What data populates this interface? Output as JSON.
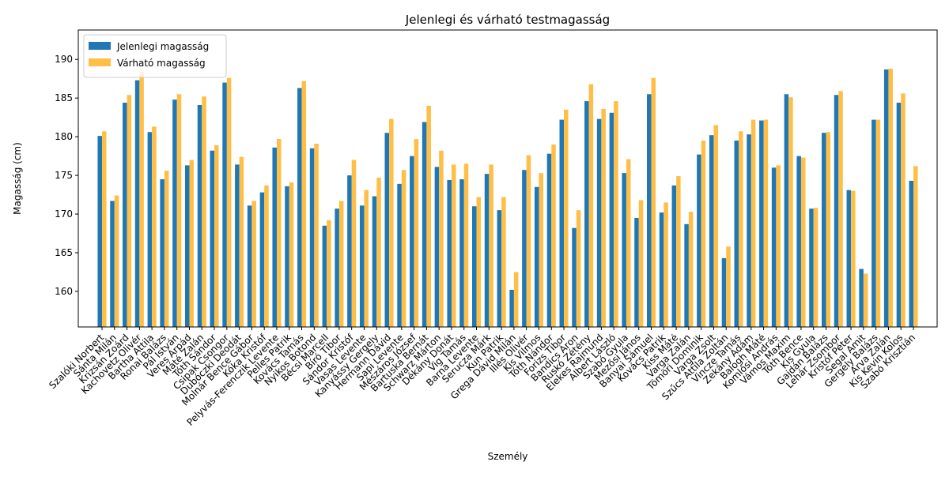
{
  "chart_data": {
    "type": "bar",
    "title": "Jelenlegi és várható testmagasság",
    "xlabel": "Személy",
    "ylabel": "Magasság (cm)",
    "categories": [
      "Szalóki Norbert",
      "Sánta Milán",
      "Krizsán Zoárd",
      "Kachovetz Olivér",
      "Bartha Attila",
      "Ronai Balázs",
      "Pál István",
      "Veres Árpád",
      "Máté Zalán",
      "Tóth Sándor",
      "Csipak Csongor",
      "Dubóczki Deodát",
      "Molnár Bence Gábor",
      "Kóka Kristóf",
      "Pelyvás-Ferenczik Levente",
      "Pelles Patrik",
      "Kovács Tamás",
      "Nyikos Botond",
      "Bécsi Marcell",
      "Bíró Tibor",
      "Sándor Kristóf",
      "Vasas Levente",
      "Kanyássy Gergely",
      "Hermann Dávid",
      "Sapi Levente",
      "Mészáros József",
      "Bartuska Bernát",
      "Schwarz Márton",
      "Dékány Donát",
      "Vig Tamás",
      "Barna Levente",
      "Serucza Márk",
      "Kun Patrik",
      "Grega Dávid Milán",
      "Illés Olivér",
      "Kis Vilmos",
      "Tóth Nándor",
      "Forizs Tibor",
      "Bandics Áron",
      "Ruskó Zétény",
      "Elekes Rajmund",
      "Albert László",
      "Szabó Gyula",
      "Mezősi János",
      "Banyai Sámuel",
      "Kovács Patrik",
      "Kiss Máté",
      "Varga Zalán",
      "Tömöri Dominik",
      "Varga Zsolt",
      "Szűcs Attila Zoltán",
      "Vincze Tamás",
      "Zekány Ádám",
      "Balogh Máté",
      "Komlósi András",
      "Vámos Maxim",
      "Tóth Bence",
      "Kis Gyula",
      "Gajdán Balázs",
      "Lehár Zsombor",
      "Kristóf Péter",
      "Segal Amit",
      "Gergely Balázs",
      "Arva Zalán",
      "Kis Kevin Kolos",
      "Szabó Krisztián"
    ],
    "series": [
      {
        "name": "Jelenlegi magasság",
        "color": "#1f77b4",
        "values": [
          180.1,
          171.7,
          184.4,
          187.3,
          180.6,
          174.5,
          184.8,
          176.3,
          184.1,
          178.2,
          187.0,
          176.4,
          171.1,
          172.8,
          178.6,
          173.6,
          186.3,
          178.5,
          168.5,
          170.7,
          175.0,
          171.1,
          172.3,
          180.5,
          173.9,
          177.5,
          181.9,
          176.1,
          174.4,
          174.5,
          171.0,
          175.2,
          170.5,
          160.2,
          175.7,
          173.5,
          177.8,
          182.2,
          168.2,
          184.6,
          182.3,
          183.1,
          175.3,
          169.5,
          185.5,
          170.2,
          173.7,
          168.7,
          177.7,
          180.2,
          164.3,
          179.5,
          180.3,
          182.1,
          176.0,
          185.5,
          177.5,
          170.7,
          180.5,
          185.4,
          173.1,
          162.9,
          182.2,
          188.7,
          184.4,
          174.3
        ]
      },
      {
        "name": "Várható magasság",
        "color": "#ffbf47",
        "values": [
          180.7,
          172.4,
          185.4,
          188.4,
          181.3,
          175.6,
          185.5,
          177.0,
          185.2,
          178.9,
          187.6,
          177.4,
          171.7,
          173.7,
          179.7,
          174.1,
          187.2,
          179.1,
          169.2,
          171.7,
          177.0,
          173.1,
          174.7,
          182.3,
          175.7,
          179.7,
          184.0,
          178.2,
          176.4,
          176.5,
          172.2,
          176.4,
          172.2,
          162.5,
          177.6,
          175.3,
          179.0,
          183.5,
          170.5,
          186.8,
          183.6,
          184.6,
          177.1,
          171.8,
          187.6,
          171.5,
          174.9,
          170.3,
          179.5,
          181.5,
          165.8,
          180.7,
          182.2,
          182.2,
          176.3,
          185.1,
          177.3,
          170.8,
          180.6,
          185.9,
          173.0,
          162.3,
          182.2,
          188.8,
          185.6,
          176.2
        ]
      }
    ],
    "ylim": [
      155.4,
      193.8
    ],
    "yticks": [
      160,
      165,
      170,
      175,
      180,
      185,
      190
    ],
    "legend": "upper left",
    "grid": false
  }
}
